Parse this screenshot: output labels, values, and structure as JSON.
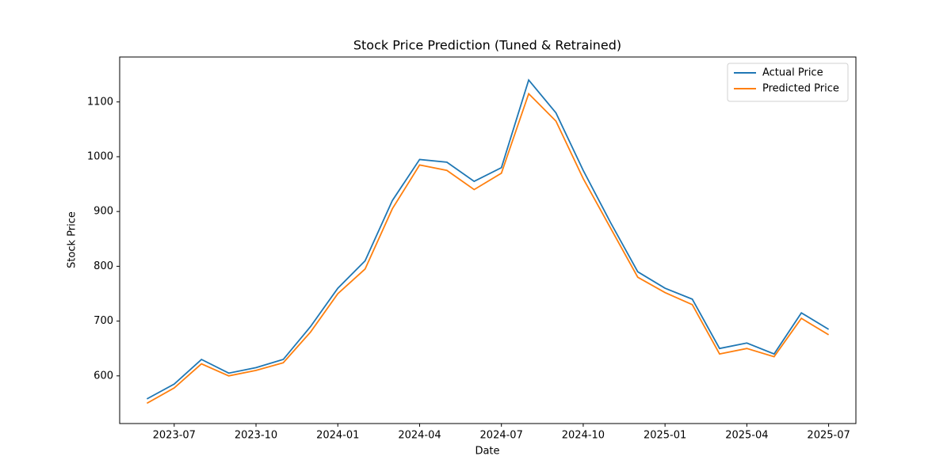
{
  "chart_data": {
    "type": "line",
    "title": "Stock Price Prediction (Tuned & Retrained)",
    "xlabel": "Date",
    "ylabel": "Stock Price",
    "x": [
      "2023-06",
      "2023-07",
      "2023-08",
      "2023-09",
      "2023-10",
      "2023-11",
      "2023-12",
      "2024-01",
      "2024-02",
      "2024-03",
      "2024-04",
      "2024-05",
      "2024-06",
      "2024-07",
      "2024-08",
      "2024-09",
      "2024-10",
      "2024-11",
      "2024-12",
      "2025-01",
      "2025-02",
      "2025-03",
      "2025-04",
      "2025-05",
      "2025-06",
      "2025-07"
    ],
    "series": [
      {
        "name": "Actual Price",
        "color": "#1f77b4",
        "values": [
          558,
          585,
          630,
          605,
          615,
          630,
          690,
          760,
          810,
          920,
          995,
          990,
          955,
          980,
          1140,
          1080,
          975,
          880,
          790,
          760,
          740,
          650,
          660,
          640,
          715,
          685
        ]
      },
      {
        "name": "Predicted Price",
        "color": "#ff7f0e",
        "values": [
          550,
          578,
          622,
          600,
          610,
          624,
          680,
          750,
          795,
          905,
          985,
          975,
          940,
          970,
          1115,
          1065,
          960,
          870,
          780,
          752,
          730,
          640,
          650,
          635,
          705,
          675
        ]
      }
    ],
    "xlim": [
      "2023-05",
      "2025-08"
    ],
    "xticks": [
      "2023-07",
      "2023-10",
      "2024-01",
      "2024-04",
      "2024-07",
      "2024-10",
      "2025-01",
      "2025-04",
      "2025-07"
    ],
    "ylim": [
      513,
      1182
    ],
    "yticks": [
      600,
      700,
      800,
      900,
      1000,
      1100
    ],
    "legend": "upper right",
    "grid": false
  }
}
